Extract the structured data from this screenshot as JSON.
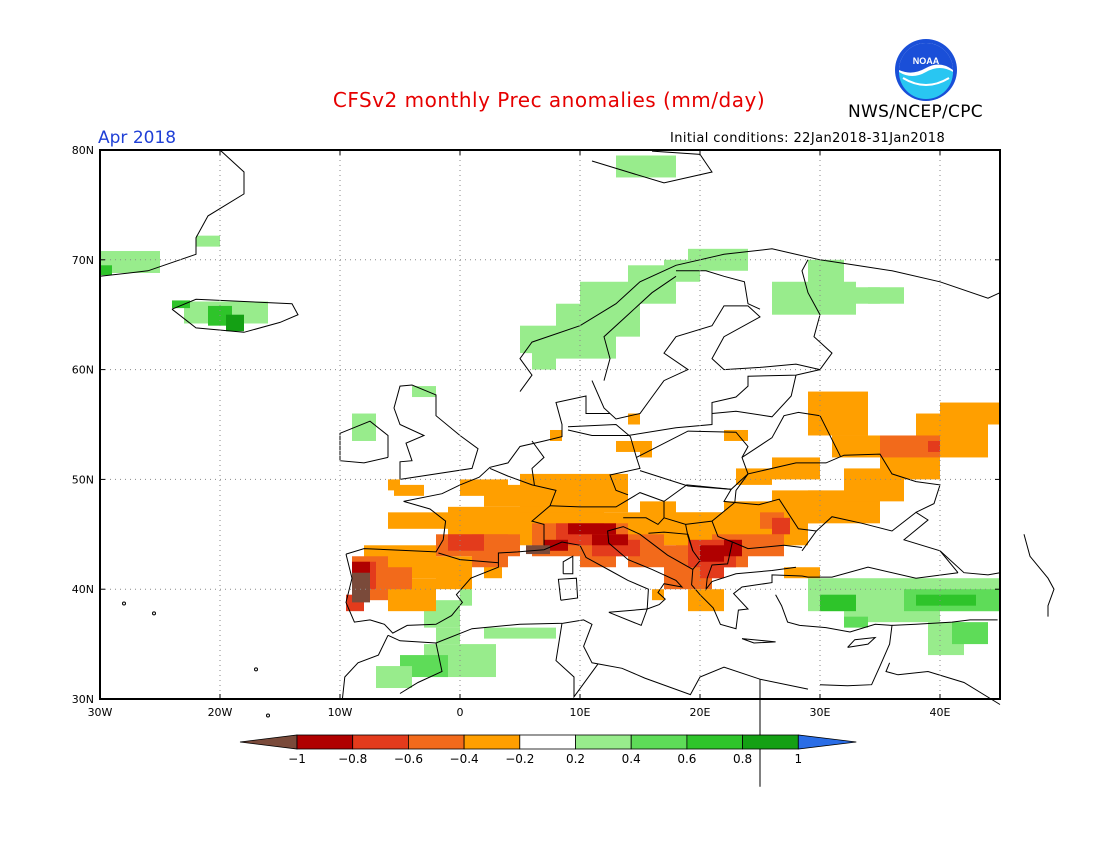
{
  "header": {
    "title": "CFSv2 monthly Prec anomalies (mm/day)",
    "agency": "NWS/NCEP/CPC",
    "logo_text": "NOAA",
    "month": "Apr 2018",
    "initial_conditions": "Initial conditions: 22Jan2018-31Jan2018"
  },
  "axes": {
    "lat_labels": [
      "80N",
      "70N",
      "60N",
      "50N",
      "40N",
      "30N"
    ],
    "lon_labels": [
      "30W",
      "20W",
      "10W",
      "0",
      "10E",
      "20E",
      "30E",
      "40E"
    ]
  },
  "colorbar": {
    "labels": [
      "−1",
      "−0.8",
      "−0.6",
      "−0.4",
      "−0.2",
      "0.2",
      "0.4",
      "0.6",
      "0.8",
      "1"
    ],
    "colors": [
      "#7a4a3a",
      "#b00000",
      "#e33b1c",
      "#f26a1b",
      "#ff9f00",
      "#ffffff",
      "#98ec8c",
      "#5edc58",
      "#2ec42a",
      "#14a014",
      "#2a6de6"
    ]
  },
  "palette": {
    "title_color": "#e60000",
    "month_color": "#1f3fd6",
    "coast": "#000000",
    "grid": "#8a8a8a"
  }
}
